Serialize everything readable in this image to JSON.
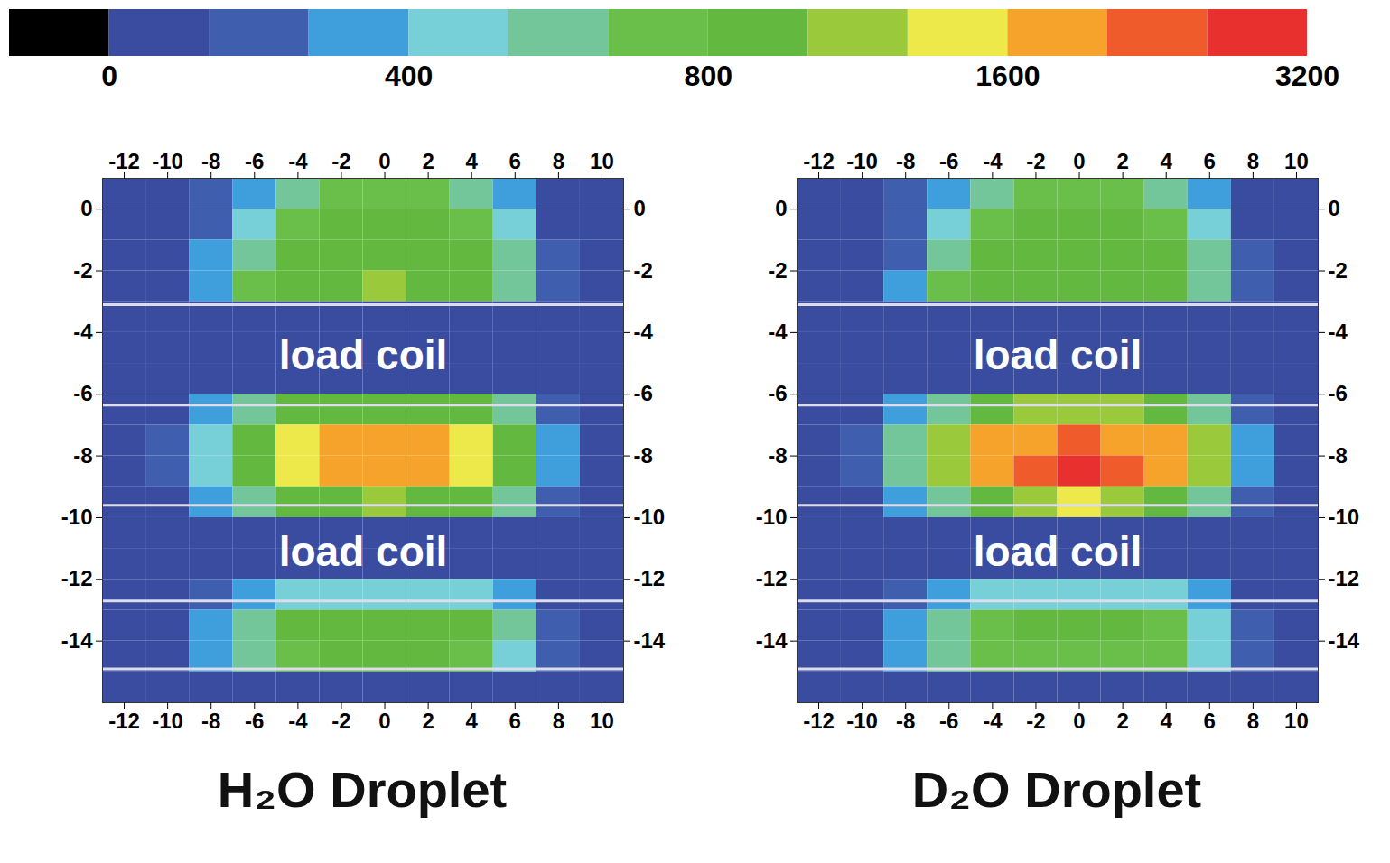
{
  "chart_data": [
    {
      "type": "heatmap",
      "title": "H₂O Droplet",
      "xlim": [
        -13,
        11
      ],
      "ylim": [
        -16,
        1
      ],
      "xticks": [
        -12,
        -10,
        -8,
        -6,
        -4,
        -2,
        0,
        2,
        4,
        6,
        8,
        10
      ],
      "yticks": [
        0,
        -2,
        -4,
        -6,
        -8,
        -10,
        -12,
        -14
      ],
      "xbins": [
        -13,
        -11,
        -9,
        -7,
        -5,
        -3,
        -1,
        1,
        3,
        5,
        7,
        9,
        11
      ],
      "ybins": [
        1,
        0,
        -1,
        -2,
        -3,
        -4,
        -5,
        -6,
        -7,
        -8,
        -9,
        -10,
        -11,
        -12,
        -13,
        -14,
        -15,
        -16
      ],
      "cells": [
        [
          30,
          70,
          180,
          380,
          650,
          750,
          780,
          750,
          650,
          300,
          80,
          30
        ],
        [
          30,
          80,
          220,
          500,
          750,
          850,
          880,
          850,
          750,
          420,
          110,
          30
        ],
        [
          40,
          100,
          280,
          620,
          850,
          950,
          1000,
          950,
          850,
          550,
          150,
          40
        ],
        [
          40,
          110,
          320,
          700,
          950,
          1050,
          1100,
          1050,
          950,
          650,
          200,
          50
        ],
        [
          40,
          55,
          60,
          60,
          60,
          60,
          60,
          60,
          60,
          60,
          55,
          40
        ],
        [
          40,
          55,
          60,
          60,
          60,
          60,
          60,
          60,
          60,
          60,
          55,
          40
        ],
        [
          40,
          55,
          60,
          60,
          60,
          60,
          60,
          60,
          60,
          60,
          55,
          40
        ],
        [
          40,
          100,
          300,
          600,
          900,
          1000,
          1050,
          1000,
          900,
          600,
          200,
          50
        ],
        [
          60,
          200,
          500,
          1000,
          1500,
          1650,
          1700,
          1650,
          1500,
          1000,
          350,
          60
        ],
        [
          60,
          200,
          500,
          1000,
          1550,
          1750,
          1900,
          1700,
          1500,
          1000,
          350,
          60
        ],
        [
          40,
          100,
          300,
          600,
          900,
          1000,
          1100,
          1000,
          900,
          600,
          200,
          50
        ],
        [
          40,
          55,
          60,
          60,
          60,
          60,
          60,
          60,
          60,
          60,
          55,
          40
        ],
        [
          40,
          55,
          60,
          60,
          60,
          60,
          60,
          60,
          60,
          60,
          55,
          40
        ],
        [
          40,
          80,
          200,
          350,
          450,
          500,
          500,
          500,
          450,
          300,
          120,
          40
        ],
        [
          40,
          120,
          350,
          650,
          800,
          850,
          850,
          850,
          800,
          550,
          200,
          50
        ],
        [
          40,
          110,
          300,
          600,
          750,
          800,
          800,
          800,
          750,
          500,
          180,
          50
        ],
        [
          40,
          55,
          60,
          60,
          60,
          60,
          60,
          60,
          60,
          60,
          55,
          40
        ]
      ],
      "lines_y": [
        -3.1,
        -6.35,
        -9.6,
        -12.7,
        -14.9
      ],
      "annotations": [
        {
          "text": "load coil",
          "x": -1,
          "y": -4.75
        },
        {
          "text": "load coil",
          "x": -1,
          "y": -11.15
        }
      ]
    },
    {
      "type": "heatmap",
      "title": "D₂O Droplet",
      "xlim": [
        -13,
        11
      ],
      "ylim": [
        -16,
        1
      ],
      "xticks": [
        -12,
        -10,
        -8,
        -6,
        -4,
        -2,
        0,
        2,
        4,
        6,
        8,
        10
      ],
      "yticks": [
        0,
        -2,
        -4,
        -6,
        -8,
        -10,
        -12,
        -14
      ],
      "xbins": [
        -13,
        -11,
        -9,
        -7,
        -5,
        -3,
        -1,
        1,
        3,
        5,
        7,
        9,
        11
      ],
      "ybins": [
        1,
        0,
        -1,
        -2,
        -3,
        -4,
        -5,
        -6,
        -7,
        -8,
        -9,
        -10,
        -11,
        -12,
        -13,
        -14,
        -15,
        -16
      ],
      "cells": [
        [
          30,
          70,
          180,
          380,
          600,
          700,
          720,
          700,
          600,
          300,
          80,
          30
        ],
        [
          30,
          80,
          220,
          480,
          720,
          800,
          830,
          800,
          720,
          420,
          110,
          30
        ],
        [
          40,
          100,
          260,
          600,
          820,
          900,
          950,
          900,
          820,
          540,
          150,
          40
        ],
        [
          40,
          110,
          300,
          680,
          900,
          1000,
          1050,
          1000,
          900,
          620,
          190,
          50
        ],
        [
          40,
          55,
          60,
          60,
          60,
          60,
          60,
          60,
          60,
          60,
          55,
          40
        ],
        [
          40,
          55,
          60,
          60,
          60,
          60,
          60,
          60,
          60,
          60,
          55,
          40
        ],
        [
          40,
          55,
          60,
          60,
          60,
          60,
          60,
          60,
          60,
          60,
          55,
          40
        ],
        [
          40,
          100,
          320,
          650,
          1000,
          1150,
          1200,
          1150,
          1000,
          650,
          220,
          50
        ],
        [
          60,
          200,
          550,
          1100,
          1700,
          2000,
          2200,
          2000,
          1700,
          1100,
          380,
          60
        ],
        [
          60,
          200,
          550,
          1100,
          1800,
          2300,
          2900,
          2300,
          1750,
          1100,
          380,
          60
        ],
        [
          40,
          100,
          320,
          650,
          1000,
          1200,
          1400,
          1150,
          1000,
          650,
          220,
          50
        ],
        [
          40,
          55,
          60,
          60,
          60,
          60,
          60,
          60,
          60,
          60,
          55,
          40
        ],
        [
          40,
          55,
          60,
          60,
          60,
          60,
          60,
          60,
          60,
          60,
          55,
          40
        ],
        [
          40,
          80,
          190,
          330,
          430,
          480,
          480,
          480,
          430,
          290,
          110,
          40
        ],
        [
          40,
          110,
          330,
          620,
          760,
          820,
          820,
          820,
          760,
          520,
          190,
          50
        ],
        [
          40,
          100,
          290,
          580,
          720,
          780,
          780,
          780,
          720,
          480,
          170,
          50
        ],
        [
          40,
          55,
          60,
          60,
          60,
          60,
          60,
          60,
          60,
          60,
          55,
          40
        ]
      ],
      "lines_y": [
        -3.1,
        -6.35,
        -9.6,
        -12.7,
        -14.9
      ],
      "annotations": [
        {
          "text": "load coil",
          "x": -1,
          "y": -4.75
        },
        {
          "text": "load coil",
          "x": -1,
          "y": -11.15
        }
      ]
    }
  ],
  "colorbar": {
    "range": [
      0,
      3200
    ],
    "ticks": [
      0,
      400,
      800,
      1600,
      3200
    ],
    "boundaries": [
      0,
      133,
      267,
      400,
      533,
      667,
      800,
      1067,
      1333,
      1600,
      2133,
      2667,
      3200
    ],
    "colors": [
      "#000000",
      "#3a4ca0",
      "#3f5fae",
      "#3f9fdc",
      "#77cfd8",
      "#72c69a",
      "#6abf4b",
      "#63b93f",
      "#9bc93c",
      "#ede94a",
      "#f6a32c",
      "#ef5b2a",
      "#e8312e"
    ]
  }
}
